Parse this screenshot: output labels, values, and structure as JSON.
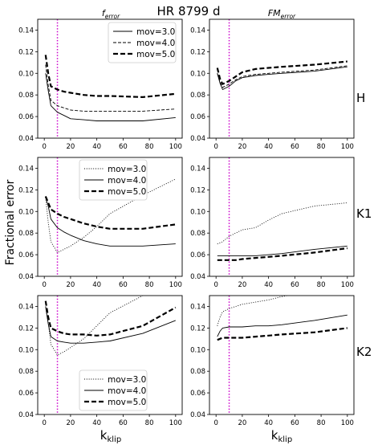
{
  "figure": {
    "title": "HR 8799 d",
    "col_titles": [
      {
        "base": "f",
        "sub": "error"
      },
      {
        "base": "FM",
        "sub": "error"
      }
    ],
    "row_labels": [
      "H",
      "K1",
      "K2"
    ],
    "ylabel": "Fractional error",
    "xlabel": {
      "base": "k",
      "sub": "klip"
    }
  },
  "style": {
    "line_color": "#000000",
    "vline_color": "#cc00cc"
  },
  "chart_data": [
    {
      "id": "H-ferror",
      "type": "line",
      "row": 0,
      "col": 0,
      "xlim": [
        -5,
        105
      ],
      "ylim": [
        0.04,
        0.15
      ],
      "xticks": [
        0,
        20,
        40,
        60,
        80,
        100
      ],
      "yticks": [
        0.04,
        0.06,
        0.08,
        0.1,
        0.12,
        0.14
      ],
      "vline": 10,
      "legend": "top-right",
      "x": [
        1,
        3,
        5,
        10,
        15,
        20,
        30,
        40,
        50,
        75,
        100
      ],
      "series": [
        {
          "name": "mov=3.0",
          "style": "solid",
          "values": [
            0.1,
            0.084,
            0.07,
            0.064,
            0.061,
            0.058,
            0.057,
            0.056,
            0.056,
            0.056,
            0.059
          ]
        },
        {
          "name": "mov=4.0",
          "style": "dashed",
          "values": [
            0.108,
            0.089,
            0.075,
            0.07,
            0.068,
            0.066,
            0.065,
            0.065,
            0.065,
            0.065,
            0.067
          ]
        },
        {
          "name": "mov=5.0",
          "style": "bold-dashed",
          "values": [
            0.117,
            0.1,
            0.088,
            0.085,
            0.083,
            0.082,
            0.08,
            0.079,
            0.079,
            0.078,
            0.081
          ]
        }
      ]
    },
    {
      "id": "H-FMerror",
      "type": "line",
      "row": 0,
      "col": 1,
      "xlim": [
        -5,
        105
      ],
      "ylim": [
        0.04,
        0.15
      ],
      "xticks": [
        0,
        20,
        40,
        60,
        80,
        100
      ],
      "yticks": [
        0.04,
        0.06,
        0.08,
        0.1,
        0.12,
        0.14
      ],
      "vline": 10,
      "x": [
        1,
        3,
        5,
        10,
        15,
        20,
        30,
        40,
        50,
        75,
        100
      ],
      "series": [
        {
          "name": "mov=3.0",
          "style": "solid",
          "values": [
            0.1,
            0.091,
            0.085,
            0.088,
            0.093,
            0.096,
            0.098,
            0.099,
            0.1,
            0.102,
            0.106
          ]
        },
        {
          "name": "mov=4.0",
          "style": "dashed",
          "values": [
            0.1,
            0.092,
            0.087,
            0.09,
            0.094,
            0.097,
            0.099,
            0.1,
            0.101,
            0.103,
            0.107
          ]
        },
        {
          "name": "mov=5.0",
          "style": "bold-dashed",
          "values": [
            0.105,
            0.095,
            0.09,
            0.093,
            0.097,
            0.101,
            0.104,
            0.105,
            0.106,
            0.108,
            0.111
          ]
        }
      ]
    },
    {
      "id": "K1-ferror",
      "type": "line",
      "row": 1,
      "col": 0,
      "xlim": [
        -5,
        105
      ],
      "ylim": [
        0.04,
        0.15
      ],
      "xticks": [
        0,
        20,
        40,
        60,
        80,
        100
      ],
      "yticks": [
        0.04,
        0.06,
        0.08,
        0.1,
        0.12,
        0.14
      ],
      "vline": 10,
      "legend": "top-center",
      "x": [
        1,
        3,
        5,
        10,
        15,
        20,
        30,
        40,
        50,
        75,
        100
      ],
      "series": [
        {
          "name": "mov=3.0",
          "style": "dotted",
          "values": [
            0.113,
            0.09,
            0.072,
            0.062,
            0.065,
            0.068,
            0.076,
            0.086,
            0.098,
            0.115,
            0.13
          ]
        },
        {
          "name": "mov=4.0",
          "style": "solid",
          "values": [
            0.113,
            0.105,
            0.093,
            0.085,
            0.081,
            0.078,
            0.073,
            0.07,
            0.068,
            0.068,
            0.07
          ]
        },
        {
          "name": "mov=5.0",
          "style": "bold-dashed",
          "values": [
            0.114,
            0.108,
            0.102,
            0.098,
            0.095,
            0.093,
            0.089,
            0.086,
            0.084,
            0.084,
            0.088
          ]
        }
      ]
    },
    {
      "id": "K1-FMerror",
      "type": "line",
      "row": 1,
      "col": 1,
      "xlim": [
        -5,
        105
      ],
      "ylim": [
        0.04,
        0.15
      ],
      "xticks": [
        0,
        20,
        40,
        60,
        80,
        100
      ],
      "yticks": [
        0.04,
        0.06,
        0.08,
        0.1,
        0.12,
        0.14
      ],
      "vline": 10,
      "x": [
        1,
        3,
        5,
        10,
        15,
        20,
        30,
        40,
        50,
        75,
        100
      ],
      "series": [
        {
          "name": "mov=3.0",
          "style": "dotted",
          "values": [
            0.07,
            0.071,
            0.072,
            0.077,
            0.08,
            0.083,
            0.085,
            0.092,
            0.098,
            0.105,
            0.108
          ]
        },
        {
          "name": "mov=4.0",
          "style": "solid",
          "values": [
            0.059,
            0.059,
            0.059,
            0.059,
            0.059,
            0.059,
            0.059,
            0.06,
            0.061,
            0.065,
            0.068
          ]
        },
        {
          "name": "mov=5.0",
          "style": "bold-dashed",
          "values": [
            0.055,
            0.055,
            0.055,
            0.055,
            0.055,
            0.056,
            0.057,
            0.058,
            0.059,
            0.062,
            0.066
          ]
        }
      ]
    },
    {
      "id": "K2-ferror",
      "type": "line",
      "row": 2,
      "col": 0,
      "xlim": [
        -5,
        105
      ],
      "ylim": [
        0.04,
        0.15
      ],
      "xticks": [
        0,
        20,
        40,
        60,
        80,
        100
      ],
      "yticks": [
        0.04,
        0.06,
        0.08,
        0.1,
        0.12,
        0.14
      ],
      "vline": 10,
      "legend": "bottom-center",
      "x": [
        1,
        3,
        5,
        10,
        15,
        20,
        30,
        40,
        50,
        75,
        100
      ],
      "series": [
        {
          "name": "mov=3.0",
          "style": "dotted",
          "values": [
            0.14,
            0.125,
            0.105,
            0.095,
            0.098,
            0.102,
            0.11,
            0.122,
            0.134,
            0.15,
            0.16
          ]
        },
        {
          "name": "mov=4.0",
          "style": "solid",
          "values": [
            0.14,
            0.124,
            0.112,
            0.108,
            0.107,
            0.106,
            0.106,
            0.107,
            0.108,
            0.115,
            0.127
          ]
        },
        {
          "name": "mov=5.0",
          "style": "bold-dashed",
          "values": [
            0.145,
            0.13,
            0.12,
            0.117,
            0.115,
            0.114,
            0.114,
            0.113,
            0.114,
            0.122,
            0.139
          ]
        }
      ]
    },
    {
      "id": "K2-FMerror",
      "type": "line",
      "row": 2,
      "col": 1,
      "xlim": [
        -5,
        105
      ],
      "ylim": [
        0.04,
        0.15
      ],
      "xticks": [
        0,
        20,
        40,
        60,
        80,
        100
      ],
      "yticks": [
        0.04,
        0.06,
        0.08,
        0.1,
        0.12,
        0.14
      ],
      "vline": 10,
      "x": [
        1,
        3,
        5,
        10,
        15,
        20,
        30,
        40,
        50,
        75,
        100
      ],
      "series": [
        {
          "name": "mov=3.0",
          "style": "dotted",
          "values": [
            0.122,
            0.13,
            0.135,
            0.138,
            0.14,
            0.142,
            0.144,
            0.146,
            0.149,
            0.155,
            0.16
          ]
        },
        {
          "name": "mov=4.0",
          "style": "solid",
          "values": [
            0.112,
            0.117,
            0.12,
            0.121,
            0.121,
            0.121,
            0.122,
            0.122,
            0.123,
            0.127,
            0.132
          ]
        },
        {
          "name": "mov=5.0",
          "style": "bold-dashed",
          "values": [
            0.109,
            0.11,
            0.111,
            0.111,
            0.111,
            0.111,
            0.112,
            0.113,
            0.114,
            0.116,
            0.12
          ]
        }
      ]
    }
  ]
}
